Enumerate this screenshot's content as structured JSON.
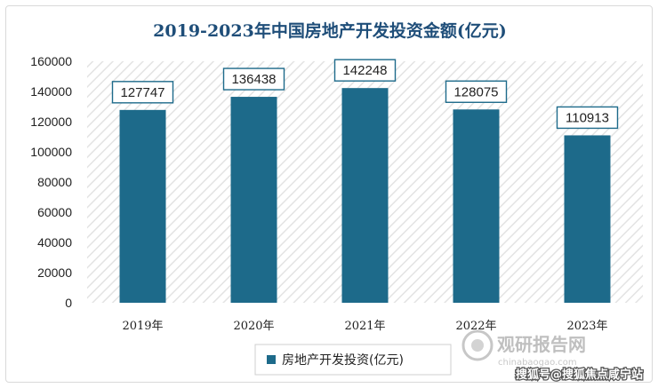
{
  "chart_data": {
    "type": "bar",
    "title": "2019-2023年中国房地产开发投资金额(亿元)",
    "categories": [
      "2019年",
      "2020年",
      "2021年",
      "2022年",
      "2023年"
    ],
    "series": [
      {
        "name": "房地产开发投资(亿元)",
        "values": [
          127747,
          136438,
          142248,
          128075,
          110913
        ]
      }
    ],
    "data_labels": [
      "127747",
      "136438",
      "142248",
      "128075",
      "110913"
    ],
    "y_ticks": [
      "0",
      "20000",
      "40000",
      "60000",
      "80000",
      "100000",
      "120000",
      "140000",
      "160000"
    ],
    "ylim": [
      0,
      160000
    ],
    "grid": false,
    "legend_position": "bottom"
  },
  "colors": {
    "bar": "#1d6a8a",
    "label_border": "#1d6a8a",
    "title": "#1f4e79",
    "plot_hatch": "#e3e3e3"
  },
  "watermark": {
    "logo_text": "观研报告网",
    "logo_url": "chinabaogao.com",
    "footer": "搜狐号@搜狐焦点咸宁站"
  }
}
